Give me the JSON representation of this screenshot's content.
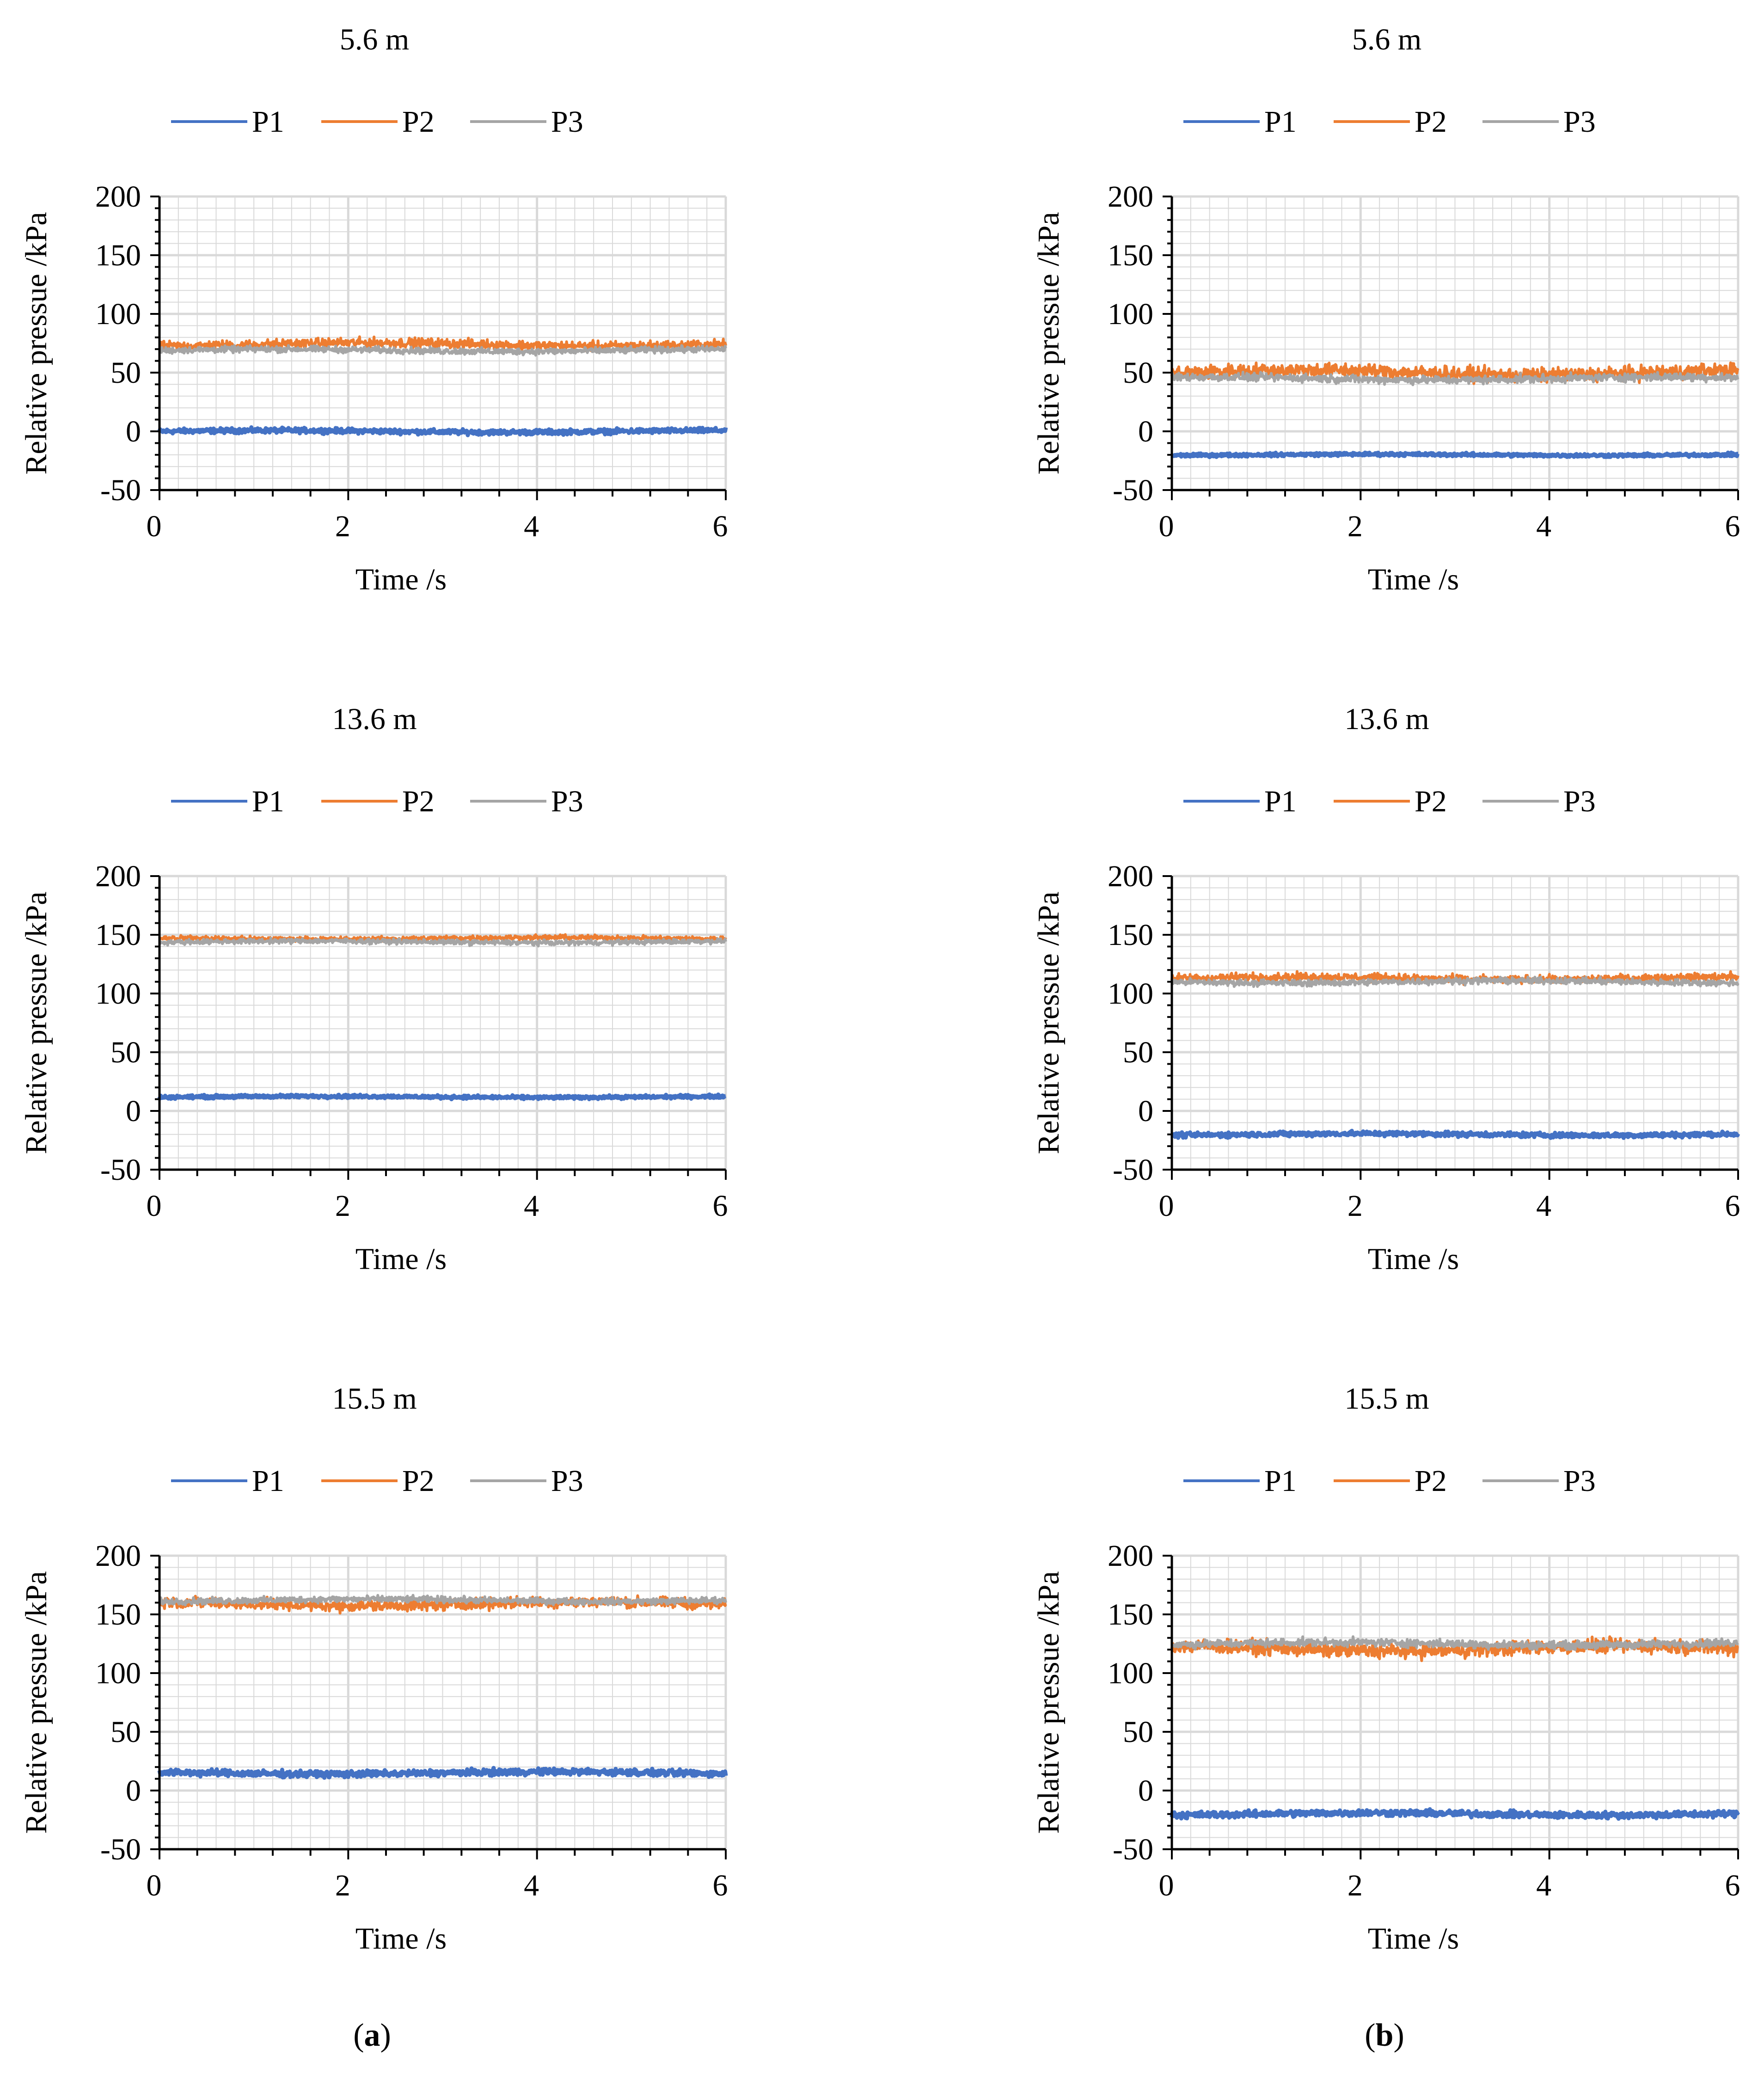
{
  "figure": {
    "panel_labels": [
      {
        "open": "(",
        "letter": "a",
        "close": ")"
      },
      {
        "open": "(",
        "letter": "b",
        "close": ")"
      }
    ]
  },
  "colors": {
    "P1": "#4472C4",
    "P2": "#ED7D31",
    "P3": "#A5A5A5",
    "grid": "#D9D9D9",
    "axis": "#000000"
  },
  "chart_data": [
    {
      "type": "line",
      "panel": "a",
      "title": "5.6 m",
      "xlabel": "Time /s",
      "ylabel": "Relative pressue /kPa",
      "xlim": [
        0,
        6
      ],
      "ylim": [
        -50,
        200
      ],
      "xticks": [
        "0",
        "2",
        "4",
        "6"
      ],
      "yticks": [
        "200",
        "150",
        "100",
        "50",
        "0",
        "-50"
      ],
      "grid": true,
      "legend": "top",
      "series": [
        {
          "name": "P1",
          "mean": 0,
          "fluctuation": 3
        },
        {
          "name": "P2",
          "mean": 74,
          "fluctuation": 6
        },
        {
          "name": "P3",
          "mean": 69,
          "fluctuation": 4
        }
      ]
    },
    {
      "type": "line",
      "panel": "b",
      "title": "5.6 m",
      "xlabel": "Time /s",
      "ylabel": "Relative pressue /kPa",
      "xlim": [
        0,
        6
      ],
      "ylim": [
        -50,
        200
      ],
      "xticks": [
        "0",
        "2",
        "4",
        "6"
      ],
      "yticks": [
        "200",
        "150",
        "100",
        "50",
        "0",
        "-50"
      ],
      "grid": true,
      "legend": "top",
      "series": [
        {
          "name": "P1",
          "mean": -20,
          "fluctuation": 2
        },
        {
          "name": "P2",
          "mean": 50,
          "fluctuation": 9
        },
        {
          "name": "P3",
          "mean": 45,
          "fluctuation": 5
        }
      ]
    },
    {
      "type": "line",
      "panel": "a",
      "title": "13.6 m",
      "xlabel": "Time /s",
      "ylabel": "Relative pressue /kPa",
      "xlim": [
        0,
        6
      ],
      "ylim": [
        -50,
        200
      ],
      "xticks": [
        "0",
        "2",
        "4",
        "6"
      ],
      "yticks": [
        "200",
        "150",
        "100",
        "50",
        "0",
        "-50"
      ],
      "grid": true,
      "legend": "top",
      "series": [
        {
          "name": "P1",
          "mean": 12,
          "fluctuation": 2
        },
        {
          "name": "P2",
          "mean": 147,
          "fluctuation": 3
        },
        {
          "name": "P3",
          "mean": 144,
          "fluctuation": 3
        }
      ]
    },
    {
      "type": "line",
      "panel": "b",
      "title": "13.6 m",
      "xlabel": "Time /s",
      "ylabel": "Relative pressue /kPa",
      "xlim": [
        0,
        6
      ],
      "ylim": [
        -50,
        200
      ],
      "xticks": [
        "0",
        "2",
        "4",
        "6"
      ],
      "yticks": [
        "200",
        "150",
        "100",
        "50",
        "0",
        "-50"
      ],
      "grid": true,
      "legend": "top",
      "series": [
        {
          "name": "P1",
          "mean": -20,
          "fluctuation": 3
        },
        {
          "name": "P2",
          "mean": 113,
          "fluctuation": 5
        },
        {
          "name": "P3",
          "mean": 110,
          "fluctuation": 4
        }
      ]
    },
    {
      "type": "line",
      "panel": "a",
      "title": "15.5 m",
      "xlabel": "Time /s",
      "ylabel": "Relative pressue /kPa",
      "xlim": [
        0,
        6
      ],
      "ylim": [
        -50,
        200
      ],
      "xticks": [
        "0",
        "2",
        "4",
        "6"
      ],
      "yticks": [
        "200",
        "150",
        "100",
        "50",
        "0",
        "-50"
      ],
      "grid": true,
      "legend": "top",
      "series": [
        {
          "name": "P1",
          "mean": 15,
          "fluctuation": 4
        },
        {
          "name": "P2",
          "mean": 159,
          "fluctuation": 7
        },
        {
          "name": "P3",
          "mean": 162,
          "fluctuation": 4
        }
      ]
    },
    {
      "type": "line",
      "panel": "b",
      "title": "15.5 m",
      "xlabel": "Time /s",
      "ylabel": "Relative pressue /kPa",
      "xlim": [
        0,
        6
      ],
      "ylim": [
        -50,
        200
      ],
      "xticks": [
        "0",
        "2",
        "4",
        "6"
      ],
      "yticks": [
        "200",
        "150",
        "100",
        "50",
        "0",
        "-50"
      ],
      "grid": true,
      "legend": "top",
      "series": [
        {
          "name": "P1",
          "mean": -20,
          "fluctuation": 4
        },
        {
          "name": "P2",
          "mean": 121,
          "fluctuation": 9
        },
        {
          "name": "P3",
          "mean": 125,
          "fluctuation": 5
        }
      ]
    }
  ]
}
